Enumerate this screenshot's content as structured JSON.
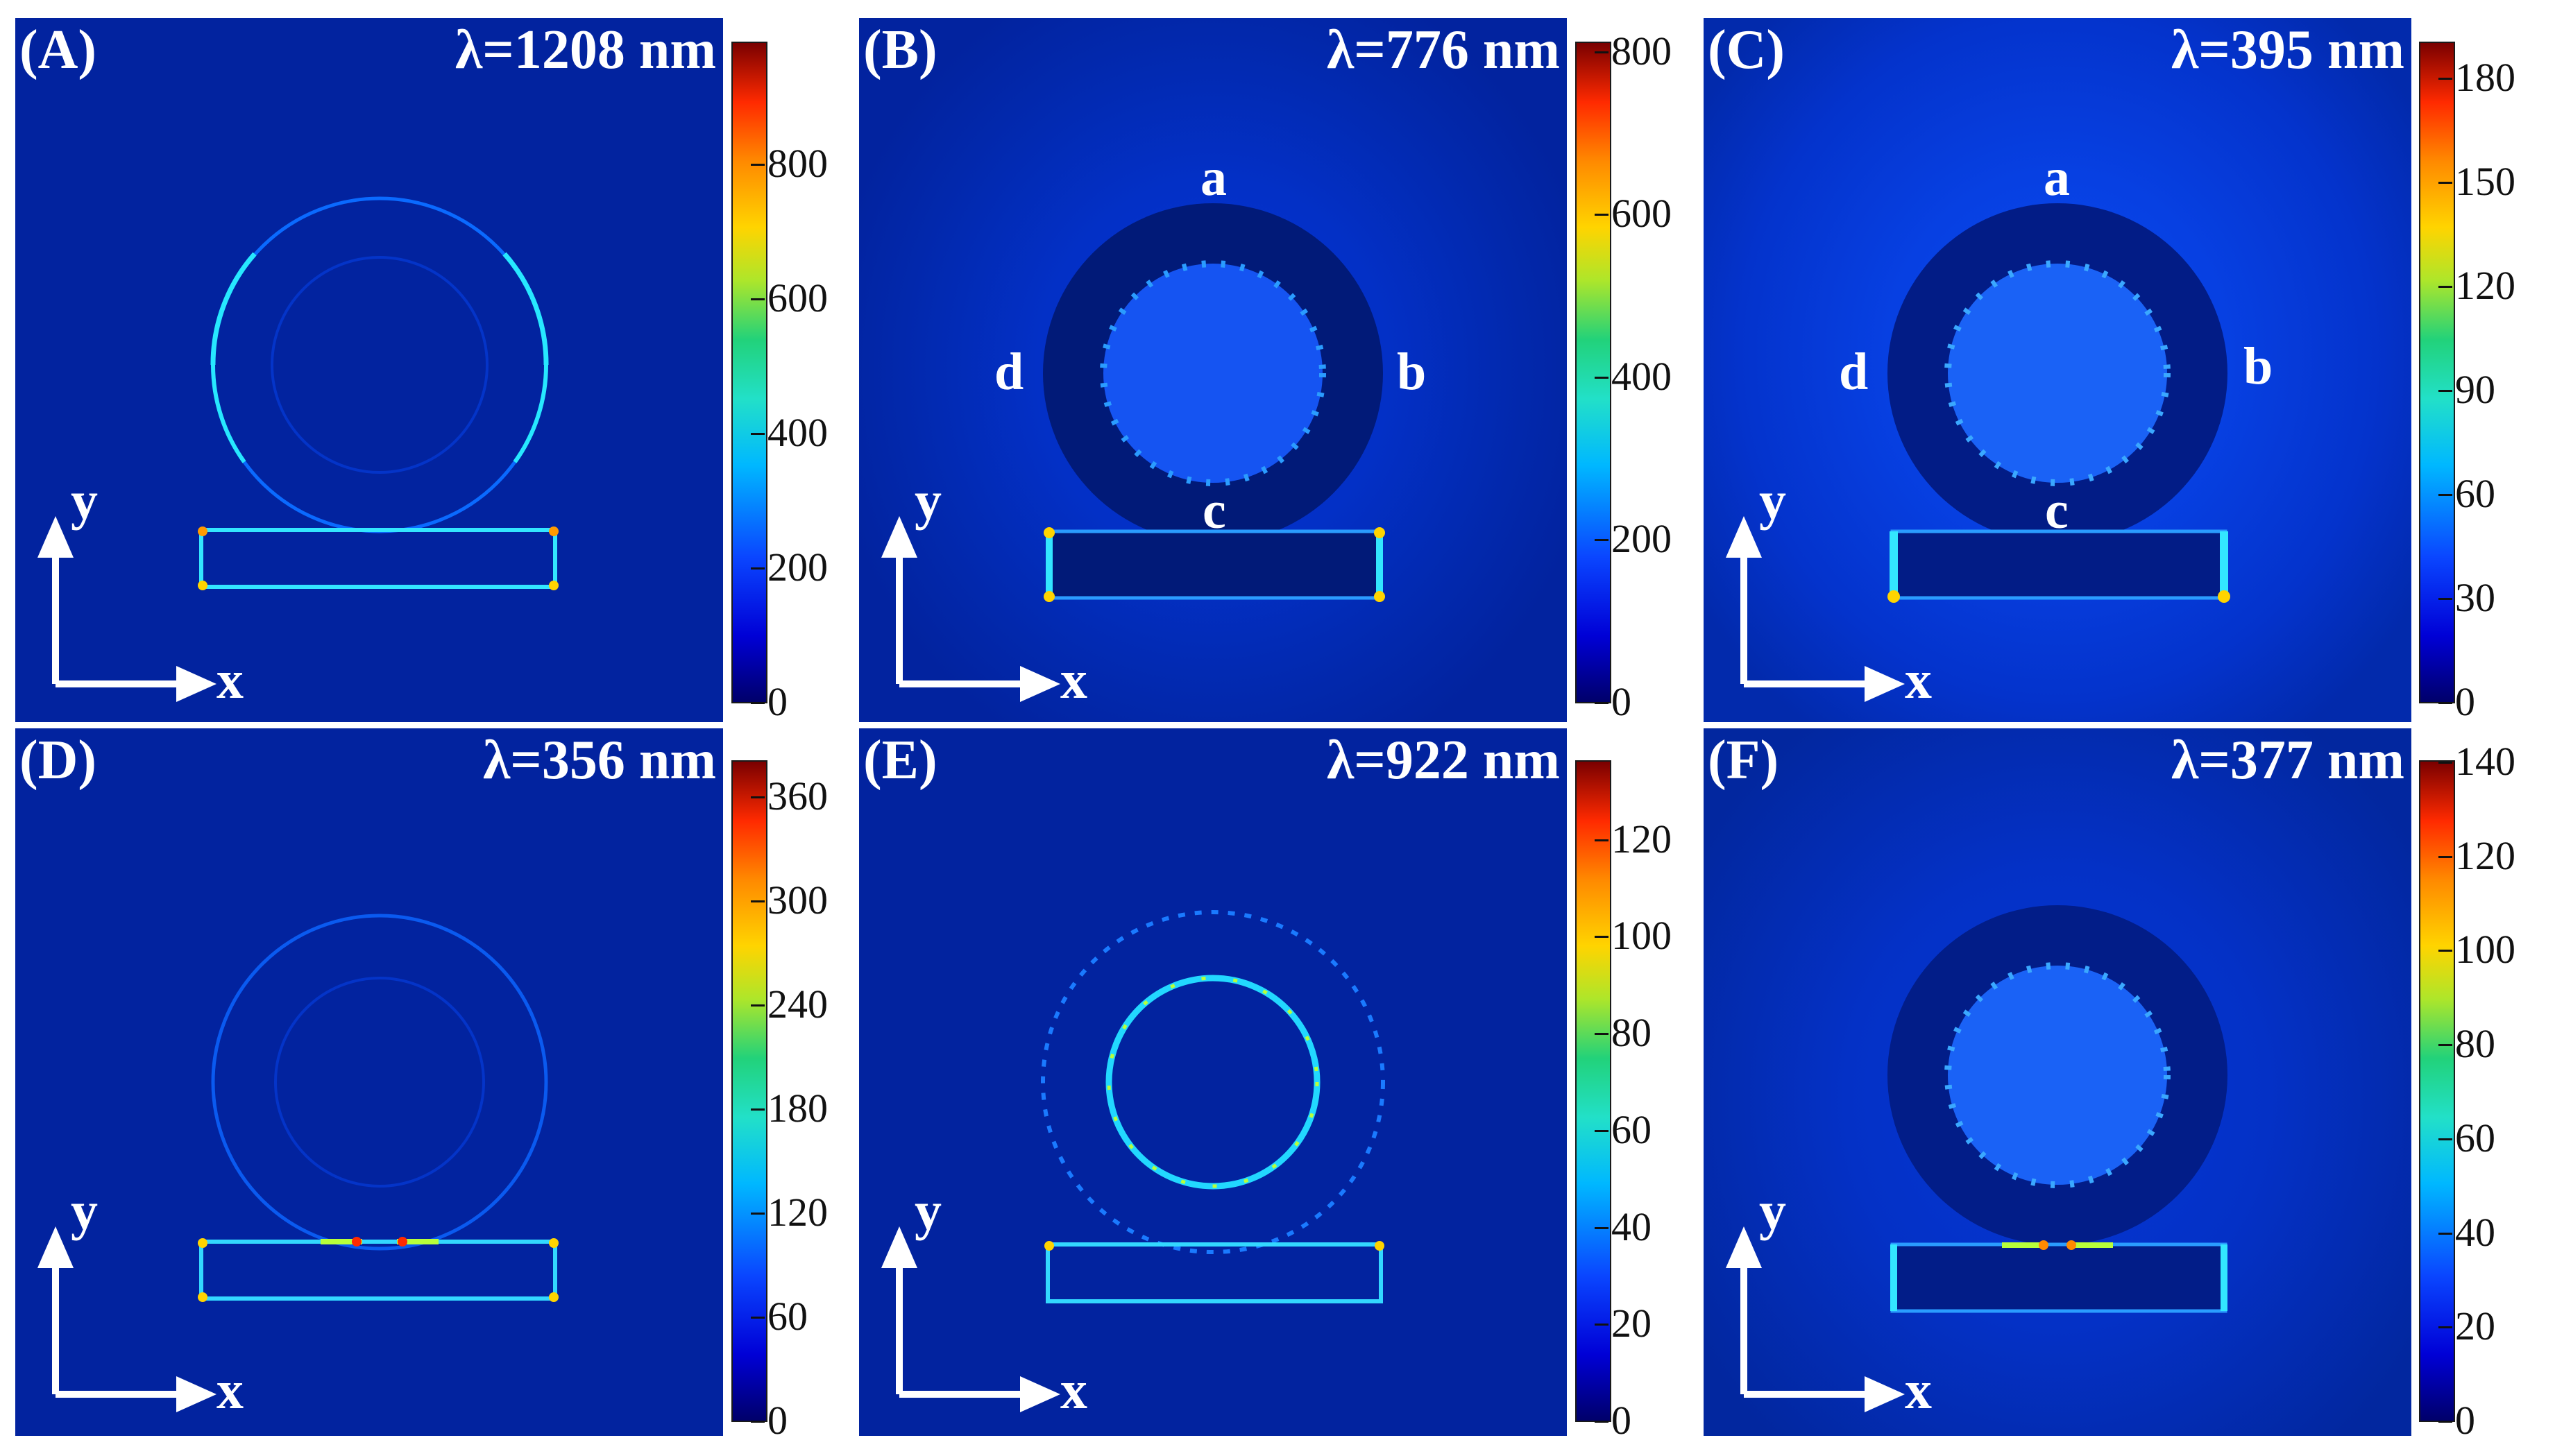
{
  "panels": [
    {
      "id": "A",
      "label": "(A)",
      "wavelength": "λ=1208 nm",
      "points": null,
      "colorbar_ticks": [
        "800",
        "600",
        "400",
        "200",
        "0"
      ],
      "colorbar_values": [
        800,
        600,
        400,
        200,
        0
      ],
      "colorbar_max": 980
    },
    {
      "id": "B",
      "label": "(B)",
      "wavelength": "λ=776 nm",
      "points": {
        "a": "a",
        "b": "b",
        "c": "c",
        "d": "d"
      },
      "colorbar_ticks": [
        "800",
        "600",
        "400",
        "200",
        "0"
      ],
      "colorbar_values": [
        800,
        600,
        400,
        200,
        0
      ],
      "colorbar_max": 810
    },
    {
      "id": "C",
      "label": "(C)",
      "wavelength": "λ=395 nm",
      "points": {
        "a": "a",
        "b": "b",
        "c": "c",
        "d": "d"
      },
      "colorbar_ticks": [
        "180",
        "150",
        "120",
        "90",
        "60",
        "30",
        "0"
      ],
      "colorbar_values": [
        180,
        150,
        120,
        90,
        60,
        30,
        0
      ],
      "colorbar_max": 190
    },
    {
      "id": "D",
      "label": "(D)",
      "wavelength": "λ=356 nm",
      "points": null,
      "colorbar_ticks": [
        "360",
        "300",
        "240",
        "180",
        "120",
        "60",
        "0"
      ],
      "colorbar_values": [
        360,
        300,
        240,
        180,
        120,
        60,
        0
      ],
      "colorbar_max": 380
    },
    {
      "id": "E",
      "label": "(E)",
      "wavelength": "λ=922 nm",
      "points": null,
      "colorbar_ticks": [
        "120",
        "100",
        "80",
        "60",
        "40",
        "20",
        "0"
      ],
      "colorbar_values": [
        120,
        100,
        80,
        60,
        40,
        20,
        0
      ],
      "colorbar_max": 136
    },
    {
      "id": "F",
      "label": "(F)",
      "wavelength": "λ=377 nm",
      "points": null,
      "colorbar_ticks": [
        "140",
        "120",
        "100",
        "80",
        "60",
        "40",
        "20",
        "0"
      ],
      "colorbar_values": [
        140,
        120,
        100,
        80,
        60,
        40,
        20,
        0
      ],
      "colorbar_max": 140
    }
  ],
  "axes": {
    "x": "x",
    "y": "y"
  },
  "colors": {
    "background": "#02239f",
    "axis_arrow": "#ffffff",
    "edge_hotspot": "#ff2a00"
  }
}
